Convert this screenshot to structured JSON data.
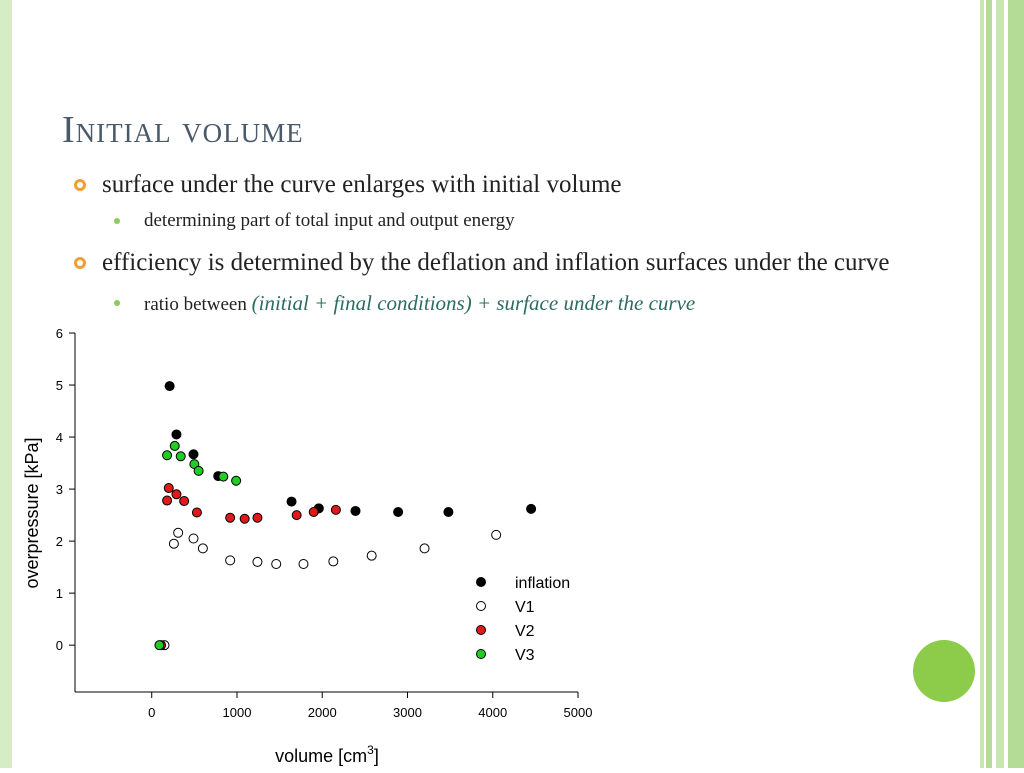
{
  "slide": {
    "title": "Initial volume",
    "bullets": [
      {
        "text": "surface under the curve enlarges with initial volume",
        "sub": [
          {
            "text": "determining part of total input and output energy"
          }
        ]
      },
      {
        "text": "efficiency is determined by the deflation and inflation surfaces under the curve",
        "sub": [
          {
            "prefix": "ratio between ",
            "emphasis": "(initial + final conditions) + surface under the curve"
          }
        ]
      }
    ],
    "colors": {
      "accent_green": "#8ccc4a",
      "title": "#4a5a6a",
      "emphasis": "#2e6b63",
      "bullet_orange": "#f0a030"
    }
  },
  "chart_data": {
    "type": "scatter",
    "xlabel": "volume [cm",
    "xlabel_sup": "3",
    "xlabel_end": "]",
    "ylabel": "overpressure [kPa]",
    "xlim": [
      -900,
      5000
    ],
    "ylim": [
      -0.9,
      6
    ],
    "xticks": [
      0,
      1000,
      2000,
      3000,
      4000,
      5000
    ],
    "yticks": [
      0,
      1,
      2,
      3,
      4,
      5,
      6
    ],
    "grid": false,
    "legend_position": "bottom-right",
    "series": [
      {
        "name": "inflation",
        "fill": "#000000",
        "stroke": "#000000",
        "points": [
          [
            210,
            4.98
          ],
          [
            290,
            4.05
          ],
          [
            490,
            3.67
          ],
          [
            780,
            3.25
          ],
          [
            1640,
            2.76
          ],
          [
            1960,
            2.63
          ],
          [
            2390,
            2.58
          ],
          [
            2890,
            2.56
          ],
          [
            3480,
            2.56
          ],
          [
            4450,
            2.62
          ]
        ]
      },
      {
        "name": "V1",
        "fill": "#ffffff",
        "stroke": "#000000",
        "points": [
          [
            150,
            0.0
          ],
          [
            260,
            1.95
          ],
          [
            310,
            2.16
          ],
          [
            490,
            2.05
          ],
          [
            600,
            1.86
          ],
          [
            920,
            1.63
          ],
          [
            1240,
            1.6
          ],
          [
            1460,
            1.56
          ],
          [
            1780,
            1.56
          ],
          [
            2130,
            1.61
          ],
          [
            2580,
            1.72
          ],
          [
            3200,
            1.86
          ],
          [
            4040,
            2.12
          ]
        ]
      },
      {
        "name": "V2",
        "fill": "#e0191b",
        "stroke": "#000000",
        "points": [
          [
            110,
            0.0
          ],
          [
            180,
            2.78
          ],
          [
            200,
            3.02
          ],
          [
            290,
            2.9
          ],
          [
            380,
            2.77
          ],
          [
            530,
            2.55
          ],
          [
            920,
            2.45
          ],
          [
            1090,
            2.43
          ],
          [
            1240,
            2.45
          ],
          [
            1700,
            2.5
          ],
          [
            1900,
            2.56
          ],
          [
            2160,
            2.6
          ]
        ]
      },
      {
        "name": "V3",
        "fill": "#22cc22",
        "stroke": "#000000",
        "points": [
          [
            90,
            0.0
          ],
          [
            180,
            3.65
          ],
          [
            270,
            3.83
          ],
          [
            340,
            3.63
          ],
          [
            500,
            3.48
          ],
          [
            550,
            3.35
          ],
          [
            840,
            3.24
          ],
          [
            990,
            3.16
          ]
        ]
      }
    ]
  }
}
